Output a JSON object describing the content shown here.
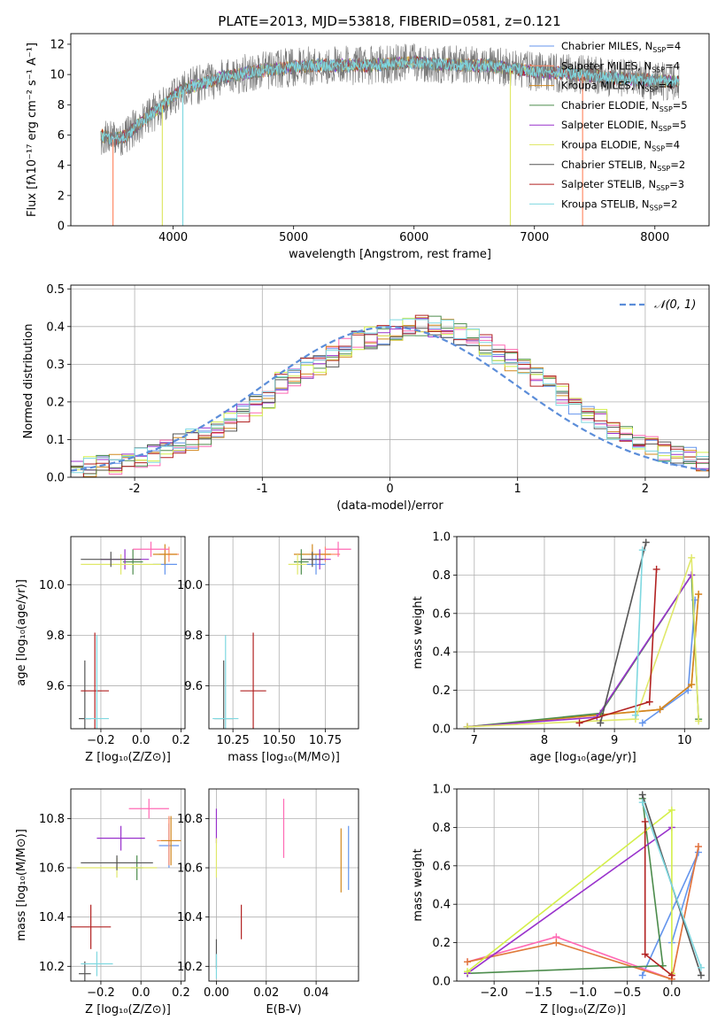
{
  "figure": {
    "title": "PLATE=2013, MJD=53818, FIBERID=0581, z=0.121"
  },
  "chart_data": [
    {
      "id": "spectrum",
      "type": "line",
      "title": "PLATE=2013, MJD=53818, FIBERID=0581, z=0.121",
      "xlabel": "wavelength [Angstrom, rest frame]",
      "ylabel": "Flux [fλ10⁻¹⁷ erg cm⁻² s⁻¹ A⁻¹]",
      "xlim": [
        3150,
        8450
      ],
      "ylim": [
        0,
        12.7
      ],
      "xticks": [
        4000,
        5000,
        6000,
        7000,
        8000
      ],
      "yticks": [
        0,
        2,
        4,
        6,
        8,
        10,
        12
      ],
      "grid": false,
      "legend_position": "top-right",
      "continuum": {
        "x": [
          3400,
          3500,
          3600,
          3700,
          3800,
          3900,
          4000,
          4100,
          4200,
          4400,
          4600,
          4800,
          5000,
          5200,
          5400,
          5600,
          5800,
          6000,
          6200,
          6400,
          6600,
          6800,
          7000,
          7200,
          7400,
          7600,
          7800,
          8000,
          8200
        ],
        "y": [
          6.0,
          5.7,
          5.9,
          6.6,
          7.3,
          7.8,
          8.6,
          9.1,
          9.3,
          9.8,
          10.1,
          10.3,
          10.5,
          10.6,
          10.6,
          10.6,
          10.7,
          10.8,
          10.7,
          10.6,
          10.6,
          10.4,
          10.2,
          10.1,
          10.0,
          9.8,
          9.7,
          9.6,
          9.5
        ]
      },
      "series": [
        {
          "name": "Chabrier MILES, N_SSP=4",
          "color": "#6495ed"
        },
        {
          "name": "Salpeter MILES, N_SSP=4",
          "color": "#ff8c69"
        },
        {
          "name": "Kroupa MILES, N_SSP=4",
          "color": "#d2881e"
        },
        {
          "name": "Chabrier ELODIE, N_SSP=5",
          "color": "#4c8c4c"
        },
        {
          "name": "Salpeter ELODIE, N_SSP=5",
          "color": "#9932cc"
        },
        {
          "name": "Kroupa ELODIE, N_SSP=4",
          "color": "#e0e86a"
        },
        {
          "name": "Chabrier STELIB, N_SSP=2",
          "color": "#555555"
        },
        {
          "name": "Salpeter STELIB, N_SSP=3",
          "color": "#b22222"
        },
        {
          "name": "Kroupa STELIB, N_SSP=2",
          "color": "#7fd8e0"
        }
      ]
    },
    {
      "id": "residuals",
      "type": "line",
      "xlabel": "(data-model)/error",
      "ylabel": "Normed distribution",
      "xlim": [
        -2.5,
        2.5
      ],
      "ylim": [
        0,
        0.51
      ],
      "xticks": [
        -2,
        -1,
        0,
        1,
        2
      ],
      "yticks": [
        0.0,
        0.1,
        0.2,
        0.3,
        0.4,
        0.5
      ],
      "grid": true,
      "legend_position": "top-right",
      "normal_curve": {
        "name": "𝒩(0, 1)",
        "color": "#5b8dd9",
        "style": "dashed"
      },
      "bin_width": 0.1,
      "bin_start": -2.5,
      "base_histogram": [
        0.02,
        0.025,
        0.03,
        0.035,
        0.04,
        0.05,
        0.06,
        0.08,
        0.09,
        0.1,
        0.11,
        0.13,
        0.15,
        0.17,
        0.19,
        0.21,
        0.25,
        0.27,
        0.29,
        0.3,
        0.32,
        0.34,
        0.36,
        0.37,
        0.38,
        0.39,
        0.4,
        0.4,
        0.4,
        0.39,
        0.38,
        0.37,
        0.35,
        0.33,
        0.31,
        0.29,
        0.27,
        0.25,
        0.22,
        0.19,
        0.17,
        0.15,
        0.13,
        0.11,
        0.09,
        0.08,
        0.07,
        0.06,
        0.05,
        0.04
      ]
    },
    {
      "id": "age-vs-Z",
      "type": "scatter",
      "xlabel": "Z [log₁₀(Z/Z⊙)]",
      "ylabel": "age  [log₁₀(age/yr)]",
      "xlim": [
        -0.35,
        0.22
      ],
      "ylim": [
        9.43,
        10.19
      ],
      "xticks": [
        -0.2,
        0.0,
        0.2
      ],
      "xticklabels": [
        "−0.2",
        "0.0",
        "0.2"
      ],
      "yticks": [
        9.6,
        9.8,
        10.0
      ],
      "yticklabels": [
        "9.6",
        "9.8",
        "10.0"
      ],
      "grid": true,
      "points": [
        {
          "x": 0.12,
          "y": 10.08,
          "xerr": 0.06,
          "yerr": 0.04,
          "color": "#6495ed"
        },
        {
          "x": 0.14,
          "y": 10.12,
          "xerr": 0.05,
          "yerr": 0.03,
          "color": "#ff8c69"
        },
        {
          "x": 0.12,
          "y": 10.12,
          "xerr": 0.06,
          "yerr": 0.04,
          "color": "#d2881e"
        },
        {
          "x": -0.04,
          "y": 10.09,
          "xerr": 0.05,
          "yerr": 0.05,
          "color": "#4c8c4c"
        },
        {
          "x": -0.08,
          "y": 10.1,
          "xerr": 0.12,
          "yerr": 0.04,
          "color": "#9932cc"
        },
        {
          "x": 0.05,
          "y": 10.14,
          "xerr": 0.09,
          "yerr": 0.03,
          "color": "#ff69b4"
        },
        {
          "x": -0.1,
          "y": 10.08,
          "xerr": 0.2,
          "yerr": 0.04,
          "color": "#e0e86a"
        },
        {
          "x": -0.15,
          "y": 10.1,
          "xerr": 0.15,
          "yerr": 0.03,
          "color": "#555555"
        },
        {
          "x": -0.28,
          "y": 9.47,
          "xerr": 0.03,
          "yerr": 0.23,
          "color": "#555555"
        },
        {
          "x": -0.23,
          "y": 9.58,
          "xerr": 0.07,
          "yerr": 0.23,
          "color": "#b22222"
        },
        {
          "x": -0.22,
          "y": 9.47,
          "xerr": 0.06,
          "yerr": 0.33,
          "color": "#7fd8e0"
        }
      ]
    },
    {
      "id": "age-vs-mass",
      "type": "scatter",
      "xlabel": "mass [log₁₀(M/M⊙)]",
      "xlim": [
        10.12,
        10.93
      ],
      "ylim": [
        9.43,
        10.19
      ],
      "xticks": [
        10.25,
        10.5,
        10.75
      ],
      "xticklabels": [
        "10.25",
        "10.50",
        "10.75"
      ],
      "yticks": [
        9.6,
        9.8,
        10.0
      ],
      "yticklabels": [
        "9.6",
        "9.8",
        "10.0"
      ],
      "grid": true,
      "points": [
        {
          "x": 10.7,
          "y": 10.08,
          "xerr": 0.05,
          "yerr": 0.04,
          "color": "#6495ed"
        },
        {
          "x": 10.75,
          "y": 10.12,
          "xerr": 0.08,
          "yerr": 0.03,
          "color": "#ff8c69"
        },
        {
          "x": 10.68,
          "y": 10.12,
          "xerr": 0.1,
          "yerr": 0.04,
          "color": "#d2881e"
        },
        {
          "x": 10.62,
          "y": 10.09,
          "xerr": 0.04,
          "yerr": 0.05,
          "color": "#4c8c4c"
        },
        {
          "x": 10.72,
          "y": 10.1,
          "xerr": 0.06,
          "yerr": 0.04,
          "color": "#9932cc"
        },
        {
          "x": 10.82,
          "y": 10.14,
          "xerr": 0.07,
          "yerr": 0.03,
          "color": "#ff69b4"
        },
        {
          "x": 10.6,
          "y": 10.08,
          "xerr": 0.05,
          "yerr": 0.04,
          "color": "#e0e86a"
        },
        {
          "x": 10.68,
          "y": 10.1,
          "xerr": 0.06,
          "yerr": 0.03,
          "color": "#555555"
        },
        {
          "x": 10.2,
          "y": 9.47,
          "xerr": 0.05,
          "yerr": 0.23,
          "color": "#555555"
        },
        {
          "x": 10.36,
          "y": 9.58,
          "xerr": 0.07,
          "yerr": 0.23,
          "color": "#b22222"
        },
        {
          "x": 10.21,
          "y": 9.47,
          "xerr": 0.07,
          "yerr": 0.33,
          "color": "#7fd8e0"
        }
      ]
    },
    {
      "id": "weight-vs-age",
      "type": "line",
      "xlabel": "age  [log₁₀(age/yr)]",
      "ylabel": "mass weight",
      "xlim": [
        6.75,
        10.35
      ],
      "ylim": [
        0,
        1
      ],
      "xticks": [
        7,
        8,
        9,
        10
      ],
      "yticks": [
        0.0,
        0.2,
        0.4,
        0.6,
        0.8,
        1.0
      ],
      "grid": true,
      "series": [
        {
          "name": "Chabrier MILES",
          "color": "#6495ed",
          "x": [
            9.4,
            10.05,
            10.15
          ],
          "y": [
            0.03,
            0.2,
            0.67
          ]
        },
        {
          "name": "Salpeter MILES",
          "color": "#ff8c69",
          "x": [
            6.9,
            9.65,
            10.1,
            10.2
          ],
          "y": [
            0.01,
            0.1,
            0.23,
            0.7
          ]
        },
        {
          "name": "Kroupa MILES",
          "color": "#d2881e",
          "x": [
            6.9,
            9.65,
            10.1,
            10.2
          ],
          "y": [
            0.01,
            0.1,
            0.23,
            0.7
          ]
        },
        {
          "name": "Chabrier ELODIE",
          "color": "#4c8c4c",
          "x": [
            6.9,
            8.8,
            10.1,
            10.2
          ],
          "y": [
            0.01,
            0.08,
            0.8,
            0.05
          ]
        },
        {
          "name": "Salpeter ELODIE",
          "color": "#9932cc",
          "x": [
            6.9,
            8.75,
            10.1
          ],
          "y": [
            0.01,
            0.06,
            0.8
          ]
        },
        {
          "name": "Kroupa ELODIE",
          "color": "#e0e86a",
          "x": [
            6.9,
            9.3,
            10.1,
            10.2
          ],
          "y": [
            0.01,
            0.05,
            0.89,
            0.04
          ]
        },
        {
          "name": "Chabrier STELIB",
          "color": "#555555",
          "x": [
            8.8,
            9.45
          ],
          "y": [
            0.03,
            0.97
          ]
        },
        {
          "name": "Salpeter STELIB",
          "color": "#b22222",
          "x": [
            8.5,
            9.5,
            9.6
          ],
          "y": [
            0.03,
            0.14,
            0.83
          ]
        },
        {
          "name": "Kroupa STELIB",
          "color": "#7fd8e0",
          "x": [
            9.3,
            9.4
          ],
          "y": [
            0.07,
            0.93
          ]
        }
      ]
    },
    {
      "id": "mass-vs-Z",
      "type": "scatter",
      "xlabel": "Z [log₁₀(Z/Z⊙)]",
      "ylabel": "mass [log₁₀(M/M⊙)]",
      "xlim": [
        -0.35,
        0.22
      ],
      "ylim": [
        10.14,
        10.92
      ],
      "xticks": [
        -0.2,
        0.0,
        0.2
      ],
      "xticklabels": [
        "−0.2",
        "0.0",
        "0.2"
      ],
      "yticks": [
        10.2,
        10.4,
        10.6,
        10.8
      ],
      "yticklabels": [
        "10.2",
        "10.4",
        "10.6",
        "10.8"
      ],
      "grid": true,
      "points": [
        {
          "x": 0.14,
          "y": 10.69,
          "xerr": 0.05,
          "yerr": 0.09,
          "color": "#6495ed"
        },
        {
          "x": 0.14,
          "y": 10.71,
          "xerr": 0.06,
          "yerr": 0.1,
          "color": "#ff8c69"
        },
        {
          "x": 0.15,
          "y": 10.71,
          "xerr": 0.05,
          "yerr": 0.1,
          "color": "#d2881e"
        },
        {
          "x": -0.02,
          "y": 10.6,
          "xerr": 0.03,
          "yerr": 0.05,
          "color": "#4c8c4c"
        },
        {
          "x": -0.1,
          "y": 10.72,
          "xerr": 0.12,
          "yerr": 0.05,
          "color": "#9932cc"
        },
        {
          "x": 0.04,
          "y": 10.84,
          "xerr": 0.1,
          "yerr": 0.04,
          "color": "#ff69b4"
        },
        {
          "x": -0.12,
          "y": 10.6,
          "xerr": 0.2,
          "yerr": 0.04,
          "color": "#e0e86a"
        },
        {
          "x": -0.12,
          "y": 10.62,
          "xerr": 0.18,
          "yerr": 0.03,
          "color": "#555555"
        },
        {
          "x": -0.28,
          "y": 10.17,
          "xerr": 0.03,
          "yerr": 0.05,
          "color": "#555555"
        },
        {
          "x": -0.25,
          "y": 10.36,
          "xerr": 0.1,
          "yerr": 0.09,
          "color": "#b22222"
        },
        {
          "x": -0.22,
          "y": 10.21,
          "xerr": 0.08,
          "yerr": 0.05,
          "color": "#7fd8e0"
        }
      ]
    },
    {
      "id": "mass-vs-EBV",
      "type": "scatter",
      "xlabel": "E(B-V)",
      "xlim": [
        -0.003,
        0.057
      ],
      "ylim": [
        10.14,
        10.92
      ],
      "xticks": [
        0.0,
        0.02,
        0.04
      ],
      "xticklabels": [
        "0.00",
        "0.02",
        "0.04"
      ],
      "yticks": [
        10.2,
        10.4,
        10.6,
        10.8
      ],
      "yticklabels": [
        "10.2",
        "10.4",
        "10.6",
        "10.8"
      ],
      "grid": true,
      "points": [
        {
          "x": 0.053,
          "y": 10.64,
          "xerr": 0,
          "yerr": 0.13,
          "color": "#6495ed"
        },
        {
          "x": 0.05,
          "y": 10.63,
          "xerr": 0,
          "yerr": 0.13,
          "color": "#d2881e"
        },
        {
          "x": 0.027,
          "y": 10.76,
          "xerr": 0,
          "yerr": 0.12,
          "color": "#ff69b4"
        },
        {
          "x": 0.0,
          "y": 10.77,
          "xerr": 0,
          "yerr": 0.07,
          "color": "#9932cc"
        },
        {
          "x": 0.0,
          "y": 10.64,
          "xerr": 0,
          "yerr": 0.08,
          "color": "#e0e86a"
        },
        {
          "x": 0.01,
          "y": 10.38,
          "xerr": 0,
          "yerr": 0.07,
          "color": "#b22222"
        },
        {
          "x": 0.0,
          "y": 10.25,
          "xerr": 0,
          "yerr": 0.06,
          "color": "#555555"
        },
        {
          "x": 0.0,
          "y": 10.2,
          "xerr": 0,
          "yerr": 0.05,
          "color": "#7fd8e0"
        }
      ]
    },
    {
      "id": "weight-vs-Z",
      "type": "line",
      "xlabel": "Z [log₁₀(Z/Z⊙)]",
      "ylabel": "mass weight",
      "xlim": [
        -2.42,
        0.42
      ],
      "ylim": [
        0,
        1
      ],
      "xticks": [
        -2.0,
        -1.5,
        -1.0,
        -0.5,
        0.0
      ],
      "xticklabels": [
        "−2.0",
        "−1.5",
        "−1.0",
        "−0.5",
        "0.0"
      ],
      "yticks": [
        0.0,
        0.2,
        0.4,
        0.6,
        0.8,
        1.0
      ],
      "grid": true,
      "series": [
        {
          "name": "Chabrier MILES",
          "color": "#6495ed",
          "x": [
            -0.33,
            0.3,
            0.0
          ],
          "y": [
            0.03,
            0.67,
            0.2
          ]
        },
        {
          "name": "Salpeter MILES",
          "color": "#ff69b4",
          "x": [
            -2.3,
            -1.3,
            0.0,
            0.3
          ],
          "y": [
            0.1,
            0.23,
            0.01,
            0.7
          ]
        },
        {
          "name": "Kroupa MILES",
          "color": "#e07a3a",
          "x": [
            -2.3,
            -1.3,
            0.0,
            0.3
          ],
          "y": [
            0.1,
            0.2,
            0.01,
            0.7
          ]
        },
        {
          "name": "Chabrier ELODIE",
          "color": "#4c8c4c",
          "x": [
            -2.3,
            -0.1,
            -0.33
          ],
          "y": [
            0.04,
            0.08,
            0.95
          ]
        },
        {
          "name": "Salpeter ELODIE",
          "color": "#9932cc",
          "x": [
            -2.3,
            0.0
          ],
          "y": [
            0.04,
            0.8
          ]
        },
        {
          "name": "Kroupa ELODIE",
          "color": "#d4ef4a",
          "x": [
            -2.3,
            0.0,
            0.0
          ],
          "y": [
            0.05,
            0.89,
            0.04
          ]
        },
        {
          "name": "Chabrier STELIB",
          "color": "#555555",
          "x": [
            -0.33,
            0.33
          ],
          "y": [
            0.97,
            0.03
          ]
        },
        {
          "name": "Salpeter STELIB",
          "color": "#b22222",
          "x": [
            -0.3,
            -0.3,
            0.0
          ],
          "y": [
            0.83,
            0.14,
            0.03
          ]
        },
        {
          "name": "Kroupa STELIB",
          "color": "#7fd8e0",
          "x": [
            -0.33,
            0.33
          ],
          "y": [
            0.93,
            0.07
          ]
        }
      ]
    }
  ]
}
